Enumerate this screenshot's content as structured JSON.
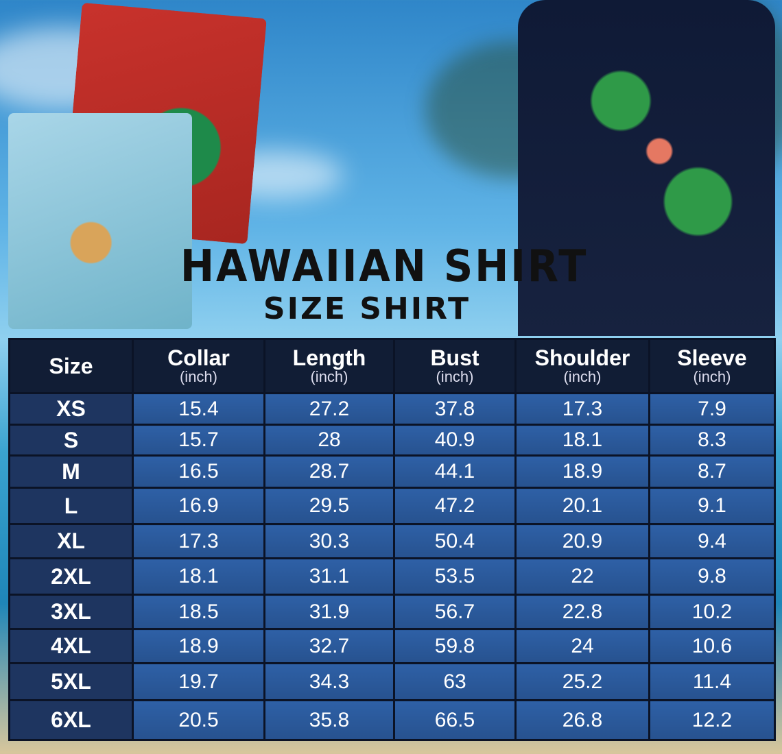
{
  "title": "HAWAIIAN SHIRT",
  "subtitle": "SIZE SHIRT",
  "colors": {
    "header_bg": "#111d35",
    "size_col_bg": "#1e3560",
    "cell_bg": "#2e60a6",
    "text": "#ffffff"
  },
  "table": {
    "columns": [
      {
        "label": "Size",
        "unit": ""
      },
      {
        "label": "Collar",
        "unit": "(inch)"
      },
      {
        "label": "Length",
        "unit": "(inch)"
      },
      {
        "label": "Bust",
        "unit": "(inch)"
      },
      {
        "label": "Shoulder",
        "unit": "(inch)"
      },
      {
        "label": "Sleeve",
        "unit": "(inch)"
      }
    ],
    "rows": [
      [
        "XS",
        "15.4",
        "27.2",
        "37.8",
        "17.3",
        "7.9"
      ],
      [
        "S",
        "15.7",
        "28",
        "40.9",
        "18.1",
        "8.3"
      ],
      [
        "M",
        "16.5",
        "28.7",
        "44.1",
        "18.9",
        "8.7"
      ],
      [
        "L",
        "16.9",
        "29.5",
        "47.2",
        "20.1",
        "9.1"
      ],
      [
        "XL",
        "17.3",
        "30.3",
        "50.4",
        "20.9",
        "9.4"
      ],
      [
        "2XL",
        "18.1",
        "31.1",
        "53.5",
        "22",
        "9.8"
      ],
      [
        "3XL",
        "18.5",
        "31.9",
        "56.7",
        "22.8",
        "10.2"
      ],
      [
        "4XL",
        "18.9",
        "32.7",
        "59.8",
        "24",
        "10.6"
      ],
      [
        "5XL",
        "19.7",
        "34.3",
        "63",
        "25.2",
        "11.4"
      ],
      [
        "6XL",
        "20.5",
        "35.8",
        "66.5",
        "26.8",
        "12.2"
      ]
    ]
  }
}
